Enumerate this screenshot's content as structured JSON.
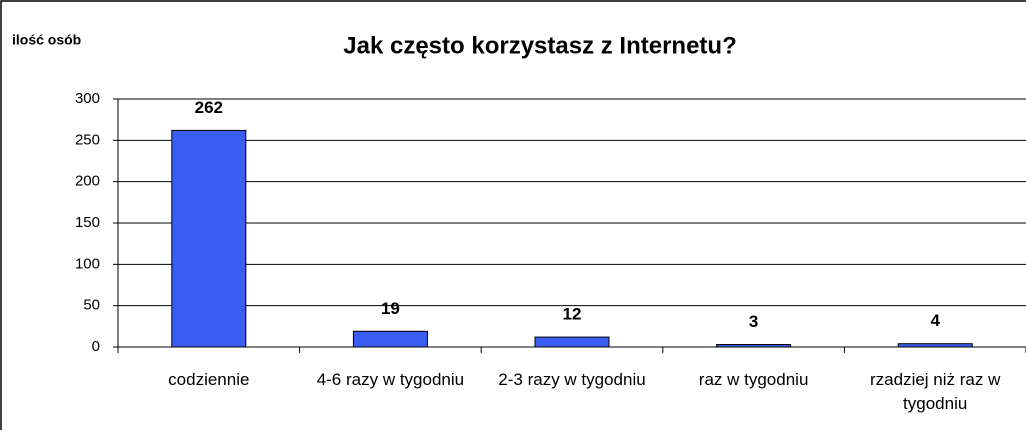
{
  "chart_data": {
    "type": "bar",
    "title": "Jak często korzystasz z Internetu?",
    "y_label": "ilość osób",
    "categories": [
      "codziennie",
      "4-6 razy w tygodniu",
      "2-3 razy w tygodniu",
      "raz w tygodniu",
      "rzadziej niż raz w tygodniu"
    ],
    "values": [
      262,
      19,
      12,
      3,
      4
    ],
    "color": "#3b5ef2",
    "ylim": [
      0,
      300
    ],
    "yticks": [
      0,
      50,
      100,
      150,
      200,
      250,
      300
    ],
    "grid": true
  }
}
